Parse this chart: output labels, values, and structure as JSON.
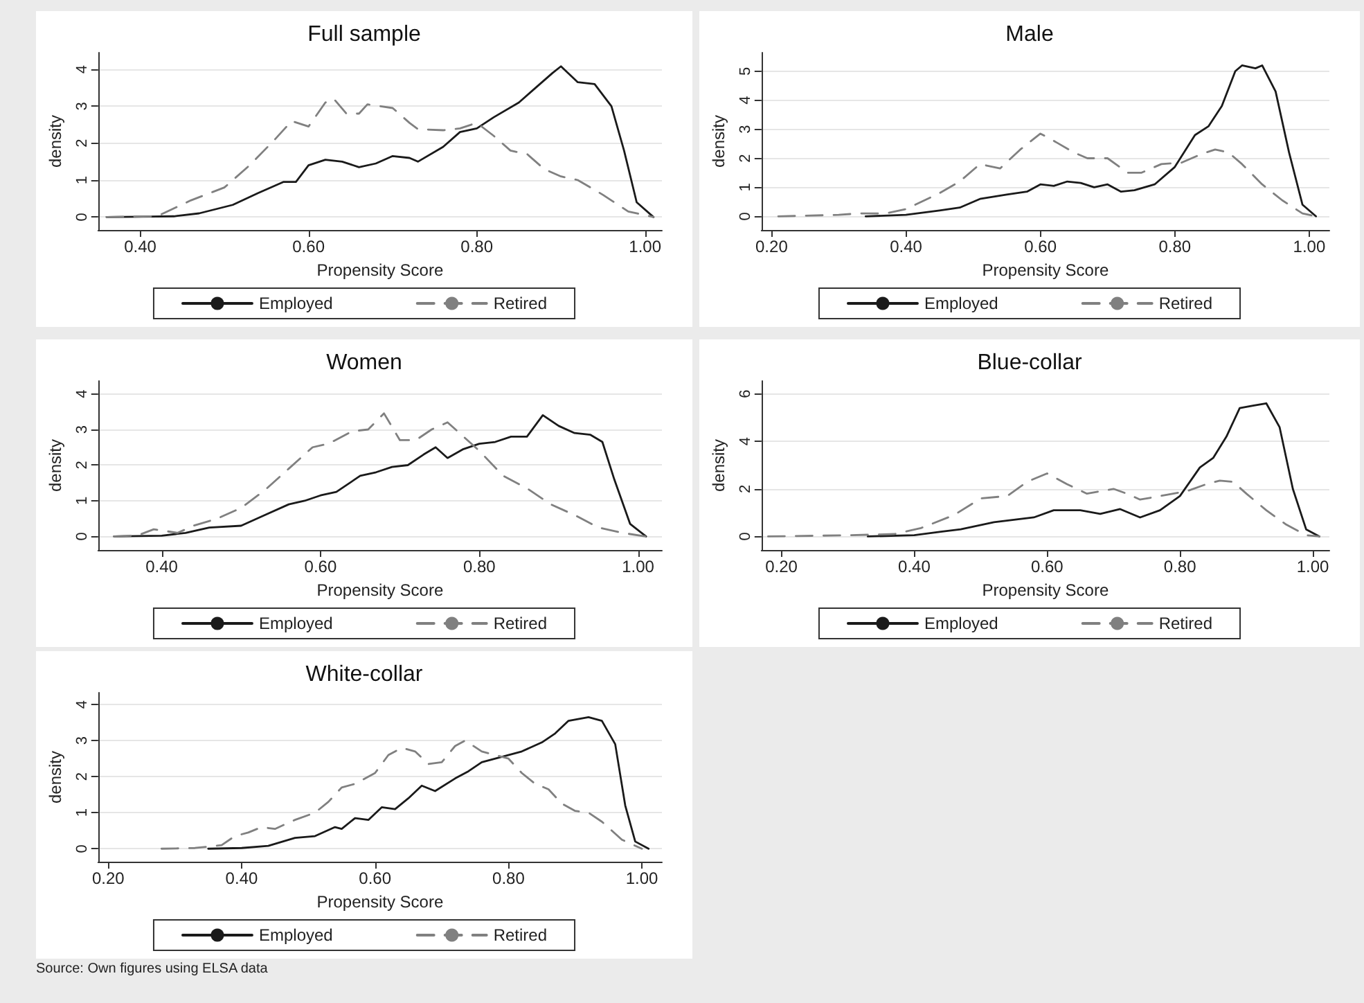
{
  "chart_data": [
    {
      "type": "line",
      "title": "Full sample",
      "xlabel": "Propensity Score",
      "ylabel": "density",
      "xlim": [
        0.35,
        1.02
      ],
      "xticks": [
        {
          "value": 0.4,
          "label": "0.40"
        },
        {
          "value": 0.6,
          "label": "0.60"
        },
        {
          "value": 0.8,
          "label": "0.80"
        },
        {
          "value": 1,
          "label": "1.00"
        }
      ],
      "ylim": [
        -0.35,
        4.45
      ],
      "yticks": [
        0,
        1,
        2,
        3,
        4
      ],
      "grid": "y",
      "legend": "bottom",
      "marker": "none",
      "series": [
        {
          "name": "Employed",
          "color": "#1a1a1a",
          "line_style": "solid",
          "x": [
            0.36,
            0.4,
            0.44,
            0.47,
            0.51,
            0.54,
            0.57,
            0.585,
            0.6,
            0.62,
            0.64,
            0.66,
            0.68,
            0.7,
            0.72,
            0.73,
            0.76,
            0.78,
            0.8,
            0.82,
            0.85,
            0.87,
            0.89,
            0.9,
            0.92,
            0.94,
            0.96,
            0.975,
            0.99,
            1.01
          ],
          "values": [
            0,
            0.01,
            0.02,
            0.1,
            0.33,
            0.65,
            0.95,
            0.95,
            1.4,
            1.55,
            1.5,
            1.35,
            1.45,
            1.65,
            1.6,
            1.5,
            1.9,
            2.3,
            2.4,
            2.7,
            3.1,
            3.5,
            3.9,
            4.08,
            3.65,
            3.6,
            3.0,
            1.8,
            0.4,
            0
          ]
        },
        {
          "name": "Retired",
          "color": "#808080",
          "line_style": "dashed",
          "x": [
            0.36,
            0.42,
            0.46,
            0.5,
            0.53,
            0.56,
            0.58,
            0.6,
            0.62,
            0.63,
            0.645,
            0.66,
            0.67,
            0.7,
            0.72,
            0.73,
            0.76,
            0.78,
            0.8,
            0.82,
            0.84,
            0.86,
            0.88,
            0.9,
            0.92,
            0.95,
            0.98,
            1.01
          ],
          "values": [
            0,
            0.02,
            0.45,
            0.8,
            1.4,
            2.1,
            2.6,
            2.45,
            3.1,
            3.2,
            2.8,
            2.8,
            3.05,
            2.95,
            2.55,
            2.38,
            2.35,
            2.4,
            2.55,
            2.2,
            1.8,
            1.7,
            1.3,
            1.1,
            1.0,
            0.6,
            0.15,
            0
          ]
        }
      ]
    },
    {
      "type": "line",
      "title": "Male",
      "xlabel": "Propensity Score",
      "ylabel": "density",
      "xlim": [
        0.185,
        1.03
      ],
      "xticks": [
        {
          "value": 0.2,
          "label": "0.20"
        },
        {
          "value": 0.4,
          "label": "0.40"
        },
        {
          "value": 0.6,
          "label": "0.60"
        },
        {
          "value": 0.8,
          "label": "0.80"
        },
        {
          "value": 1,
          "label": "1.00"
        }
      ],
      "ylim": [
        -0.47,
        5.64
      ],
      "yticks": [
        0,
        1,
        2,
        3,
        4,
        5
      ],
      "grid": "y",
      "legend": "bottom",
      "marker": "none",
      "series": [
        {
          "name": "Employed",
          "color": "#1a1a1a",
          "line_style": "solid",
          "x": [
            0.34,
            0.4,
            0.45,
            0.48,
            0.51,
            0.55,
            0.58,
            0.6,
            0.62,
            0.64,
            0.66,
            0.68,
            0.7,
            0.72,
            0.74,
            0.77,
            0.8,
            0.83,
            0.85,
            0.87,
            0.89,
            0.9,
            0.92,
            0.93,
            0.95,
            0.97,
            0.99,
            1.01
          ],
          "values": [
            0,
            0.05,
            0.2,
            0.3,
            0.6,
            0.75,
            0.85,
            1.1,
            1.05,
            1.2,
            1.15,
            1.0,
            1.1,
            0.85,
            0.9,
            1.1,
            1.7,
            2.8,
            3.1,
            3.8,
            5.0,
            5.2,
            5.1,
            5.2,
            4.3,
            2.2,
            0.4,
            0
          ]
        },
        {
          "name": "Retired",
          "color": "#808080",
          "line_style": "dashed",
          "x": [
            0.21,
            0.3,
            0.33,
            0.37,
            0.4,
            0.45,
            0.48,
            0.51,
            0.54,
            0.57,
            0.6,
            0.62,
            0.65,
            0.67,
            0.7,
            0.73,
            0.75,
            0.78,
            0.81,
            0.84,
            0.86,
            0.88,
            0.9,
            0.93,
            0.96,
            0.99,
            1.01
          ],
          "values": [
            0,
            0.05,
            0.1,
            0.1,
            0.25,
            0.8,
            1.2,
            1.8,
            1.65,
            2.3,
            2.85,
            2.6,
            2.2,
            2.0,
            2.0,
            1.5,
            1.5,
            1.8,
            1.85,
            2.15,
            2.3,
            2.2,
            1.8,
            1.1,
            0.55,
            0.1,
            0
          ]
        }
      ]
    },
    {
      "type": "line",
      "title": "Women",
      "xlabel": "Propensity Score",
      "ylabel": "density",
      "xlim": [
        0.32,
        1.03
      ],
      "xticks": [
        {
          "value": 0.4,
          "label": "0.40"
        },
        {
          "value": 0.6,
          "label": "0.60"
        },
        {
          "value": 0.8,
          "label": "0.80"
        },
        {
          "value": 1,
          "label": "1.00"
        }
      ],
      "ylim": [
        -0.38,
        4.36
      ],
      "yticks": [
        0,
        1,
        2,
        3,
        4
      ],
      "grid": "y",
      "legend": "bottom",
      "marker": "none",
      "series": [
        {
          "name": "Employed",
          "color": "#1a1a1a",
          "line_style": "solid",
          "x": [
            0.34,
            0.4,
            0.43,
            0.46,
            0.5,
            0.53,
            0.56,
            0.58,
            0.6,
            0.62,
            0.65,
            0.67,
            0.69,
            0.71,
            0.73,
            0.745,
            0.76,
            0.78,
            0.8,
            0.82,
            0.84,
            0.86,
            0.88,
            0.9,
            0.92,
            0.94,
            0.955,
            0.97,
            0.99,
            1.01
          ],
          "values": [
            0,
            0.02,
            0.1,
            0.25,
            0.3,
            0.6,
            0.9,
            1.0,
            1.15,
            1.25,
            1.7,
            1.8,
            1.95,
            2.0,
            2.3,
            2.5,
            2.2,
            2.45,
            2.6,
            2.65,
            2.8,
            2.8,
            3.4,
            3.1,
            2.9,
            2.85,
            2.65,
            1.6,
            0.35,
            0
          ]
        },
        {
          "name": "Retired",
          "color": "#808080",
          "line_style": "dashed",
          "x": [
            0.34,
            0.37,
            0.39,
            0.42,
            0.44,
            0.47,
            0.5,
            0.53,
            0.56,
            0.59,
            0.61,
            0.64,
            0.66,
            0.68,
            0.7,
            0.72,
            0.74,
            0.76,
            0.78,
            0.8,
            0.83,
            0.86,
            0.89,
            0.92,
            0.95,
            0.98,
            1.01
          ],
          "values": [
            0,
            0.03,
            0.2,
            0.1,
            0.3,
            0.5,
            0.8,
            1.3,
            1.9,
            2.5,
            2.6,
            2.95,
            3.0,
            3.45,
            2.7,
            2.7,
            3.0,
            3.2,
            2.8,
            2.4,
            1.7,
            1.35,
            0.9,
            0.6,
            0.25,
            0.1,
            0
          ]
        }
      ]
    },
    {
      "type": "line",
      "title": "Blue-collar",
      "xlabel": "Propensity Score",
      "ylabel": "density",
      "xlim": [
        0.17,
        1.025
      ],
      "xticks": [
        {
          "value": 0.2,
          "label": "0.20"
        },
        {
          "value": 0.4,
          "label": "0.40"
        },
        {
          "value": 0.6,
          "label": "0.60"
        },
        {
          "value": 0.8,
          "label": "0.80"
        },
        {
          "value": 1,
          "label": "1.00"
        }
      ],
      "ylim": [
        -0.57,
        6.54
      ],
      "yticks": [
        0,
        2,
        4,
        6
      ],
      "grid": "y",
      "legend": "bottom",
      "marker": "none",
      "series": [
        {
          "name": "Employed",
          "color": "#1a1a1a",
          "line_style": "solid",
          "x": [
            0.33,
            0.4,
            0.44,
            0.47,
            0.52,
            0.55,
            0.58,
            0.61,
            0.65,
            0.68,
            0.71,
            0.74,
            0.77,
            0.8,
            0.83,
            0.85,
            0.87,
            0.89,
            0.91,
            0.93,
            0.95,
            0.97,
            0.99,
            1.01
          ],
          "values": [
            0,
            0.05,
            0.2,
            0.3,
            0.6,
            0.7,
            0.8,
            1.1,
            1.1,
            0.95,
            1.15,
            0.8,
            1.1,
            1.7,
            2.9,
            3.3,
            4.2,
            5.4,
            5.5,
            5.6,
            4.6,
            2.0,
            0.3,
            0
          ]
        },
        {
          "name": "Retired",
          "color": "#808080",
          "line_style": "dashed",
          "x": [
            0.18,
            0.3,
            0.37,
            0.41,
            0.46,
            0.5,
            0.54,
            0.57,
            0.6,
            0.63,
            0.66,
            0.68,
            0.7,
            0.72,
            0.74,
            0.78,
            0.81,
            0.84,
            0.86,
            0.88,
            0.9,
            0.93,
            0.96,
            0.99,
            1.01
          ],
          "values": [
            0,
            0.05,
            0.1,
            0.35,
            0.9,
            1.6,
            1.7,
            2.3,
            2.65,
            2.2,
            1.8,
            1.9,
            2.0,
            1.8,
            1.55,
            1.75,
            1.9,
            2.2,
            2.35,
            2.3,
            1.8,
            1.1,
            0.5,
            0.05,
            0
          ]
        }
      ]
    },
    {
      "type": "line",
      "title": "White-collar",
      "xlabel": "Propensity Score",
      "ylabel": "density",
      "xlim": [
        0.185,
        1.03
      ],
      "xticks": [
        {
          "value": 0.2,
          "label": "0.20"
        },
        {
          "value": 0.4,
          "label": "0.40"
        },
        {
          "value": 0.6,
          "label": "0.60"
        },
        {
          "value": 0.8,
          "label": "0.80"
        },
        {
          "value": 1,
          "label": "1.00"
        }
      ],
      "ylim": [
        -0.36,
        4.33
      ],
      "yticks": [
        0,
        1,
        2,
        3,
        4
      ],
      "grid": "y",
      "legend": "bottom",
      "marker": "none",
      "annotations": [
        "Source: Own figures using ELSA data"
      ],
      "series": [
        {
          "name": "Employed",
          "color": "#1a1a1a",
          "line_style": "solid",
          "x": [
            0.35,
            0.4,
            0.44,
            0.48,
            0.51,
            0.54,
            0.55,
            0.57,
            0.59,
            0.61,
            0.63,
            0.65,
            0.67,
            0.69,
            0.72,
            0.74,
            0.76,
            0.79,
            0.82,
            0.85,
            0.87,
            0.89,
            0.92,
            0.94,
            0.96,
            0.975,
            0.99,
            1.01
          ],
          "values": [
            0,
            0.02,
            0.08,
            0.3,
            0.35,
            0.6,
            0.55,
            0.85,
            0.8,
            1.15,
            1.1,
            1.4,
            1.75,
            1.6,
            1.95,
            2.15,
            2.4,
            2.55,
            2.7,
            2.95,
            3.2,
            3.55,
            3.65,
            3.55,
            2.9,
            1.2,
            0.2,
            0
          ]
        },
        {
          "name": "Retired",
          "color": "#808080",
          "line_style": "dashed",
          "x": [
            0.28,
            0.33,
            0.37,
            0.39,
            0.41,
            0.43,
            0.45,
            0.48,
            0.51,
            0.53,
            0.55,
            0.57,
            0.6,
            0.62,
            0.64,
            0.66,
            0.68,
            0.7,
            0.72,
            0.735,
            0.76,
            0.78,
            0.8,
            0.82,
            0.84,
            0.86,
            0.88,
            0.9,
            0.92,
            0.94,
            0.97,
            1.0
          ],
          "values": [
            0,
            0.02,
            0.1,
            0.35,
            0.45,
            0.6,
            0.55,
            0.8,
            1.0,
            1.3,
            1.7,
            1.8,
            2.1,
            2.6,
            2.8,
            2.7,
            2.35,
            2.4,
            2.85,
            3.0,
            2.7,
            2.6,
            2.5,
            2.1,
            1.8,
            1.65,
            1.25,
            1.05,
            1.0,
            0.75,
            0.25,
            0
          ]
        }
      ]
    }
  ]
}
